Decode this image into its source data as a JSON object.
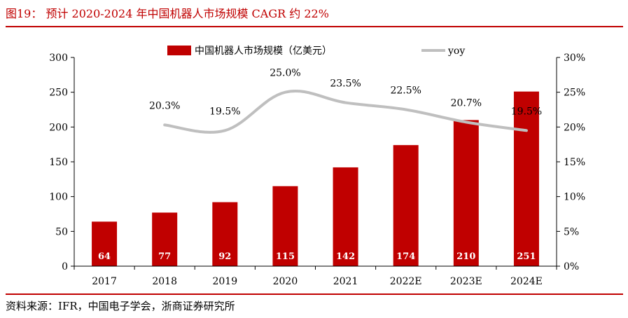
{
  "header": {
    "title": "图19：  预计 2020-2024 年中国机器人市场规模 CAGR 约 22%"
  },
  "footer": {
    "source": "资料来源：IFR，中国电子学会，浙商证券研究所"
  },
  "colors": {
    "accent": "#c00000",
    "line": "#bfbfbf"
  },
  "chart_data": {
    "type": "bar",
    "categories": [
      "2017",
      "2018",
      "2019",
      "2020",
      "2021",
      "2022E",
      "2023E",
      "2024E"
    ],
    "series": [
      {
        "name": "中国机器人市场规模（亿美元）",
        "type": "bar",
        "axis": "left",
        "values": [
          64,
          77,
          92,
          115,
          142,
          174,
          210,
          251
        ]
      },
      {
        "name": "yoy",
        "type": "line",
        "axis": "right",
        "values": [
          null,
          20.3,
          19.5,
          25.0,
          23.5,
          22.5,
          20.7,
          19.5
        ]
      }
    ],
    "bar_labels": [
      "64",
      "77",
      "92",
      "115",
      "142",
      "174",
      "210",
      "251"
    ],
    "line_labels": [
      "",
      "20.3%",
      "19.5%",
      "25.0%",
      "23.5%",
      "22.5%",
      "20.7%",
      "19.5%"
    ],
    "ylim_left": [
      0,
      300
    ],
    "yticks_left": [
      "0",
      "50",
      "100",
      "150",
      "200",
      "250",
      "300"
    ],
    "ylim_right": [
      0,
      30
    ],
    "yticks_right": [
      "0%",
      "5%",
      "10%",
      "15%",
      "20%",
      "25%",
      "30%"
    ],
    "legend_position": "top-center",
    "grid": false
  }
}
